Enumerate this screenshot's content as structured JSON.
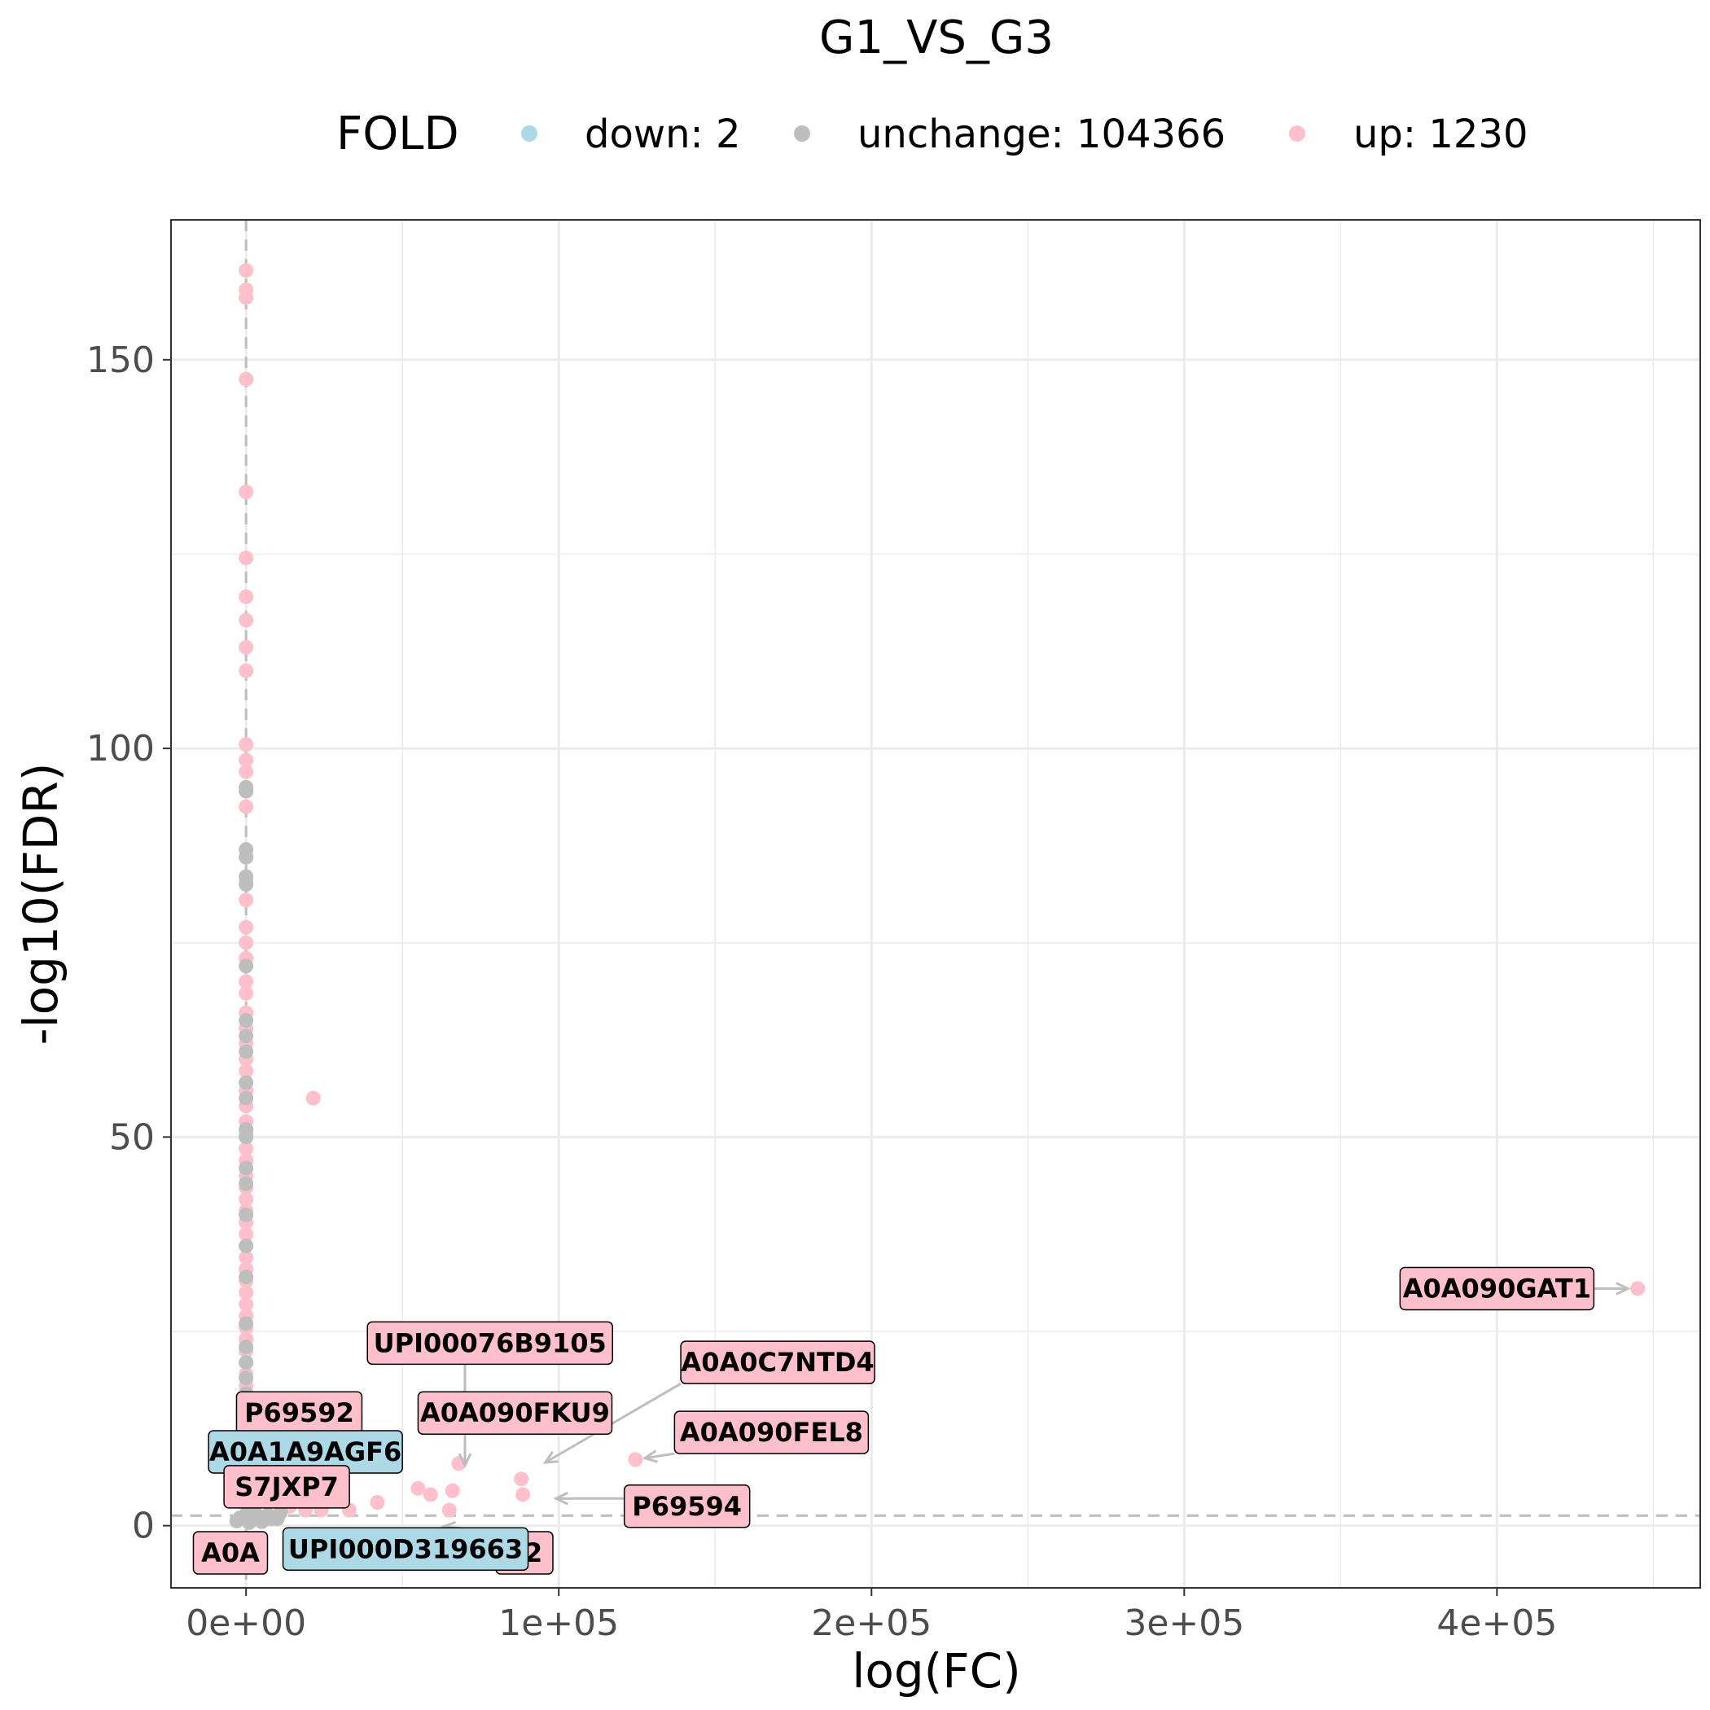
{
  "chart_data": {
    "type": "scatter",
    "title": "G1_VS_G3",
    "xlabel": "log(FC)",
    "ylabel": "-log10(FDR)",
    "xlim": [
      -24000,
      465000
    ],
    "ylim": [
      -8,
      168
    ],
    "x_ticks": [
      {
        "value": 0,
        "label": "0e+00"
      },
      {
        "value": 100000,
        "label": "1e+05"
      },
      {
        "value": 200000,
        "label": "2e+05"
      },
      {
        "value": 300000,
        "label": "3e+05"
      },
      {
        "value": 400000,
        "label": "4e+05"
      }
    ],
    "y_ticks": [
      {
        "value": 0,
        "label": "0"
      },
      {
        "value": 50,
        "label": "50"
      },
      {
        "value": 100,
        "label": "100"
      },
      {
        "value": 150,
        "label": "150"
      }
    ],
    "grid": true,
    "threshold_lines": {
      "vertical_x": 0,
      "horizontal_y": 1.3
    },
    "legend": {
      "title": "FOLD",
      "position": "top",
      "entries": [
        {
          "key": "down",
          "label": "down: 2",
          "color": "#add8e6"
        },
        {
          "key": "unchange",
          "label": "unchange: 104366",
          "color": "#bebebe"
        },
        {
          "key": "up",
          "label": "up: 1230",
          "color": "#ffc0cb"
        }
      ]
    },
    "series": [
      {
        "key": "up",
        "color": "#ffc0cb",
        "points": [
          [
            0,
            161.5
          ],
          [
            0,
            159
          ],
          [
            0,
            158
          ],
          [
            0,
            147.5
          ],
          [
            0,
            133
          ],
          [
            0,
            124.5
          ],
          [
            0,
            119.5
          ],
          [
            0,
            116.5
          ],
          [
            0,
            113
          ],
          [
            0,
            110
          ],
          [
            0,
            100.5
          ],
          [
            0,
            98.5
          ],
          [
            0,
            97
          ],
          [
            0,
            92.5
          ],
          [
            0,
            86
          ],
          [
            0,
            83
          ],
          [
            0,
            80.5
          ],
          [
            0,
            77
          ],
          [
            0,
            75
          ],
          [
            0,
            73
          ],
          [
            0,
            70
          ],
          [
            0,
            68.5
          ],
          [
            0,
            66
          ],
          [
            0,
            64
          ],
          [
            0,
            62
          ],
          [
            0,
            60
          ],
          [
            0,
            58.5
          ],
          [
            0,
            56
          ],
          [
            0,
            54
          ],
          [
            0,
            52
          ],
          [
            0,
            50.5
          ],
          [
            0,
            48.5
          ],
          [
            0,
            47
          ],
          [
            0,
            45
          ],
          [
            0,
            43.5
          ],
          [
            0,
            42
          ],
          [
            0,
            40.5
          ],
          [
            0,
            39
          ],
          [
            0,
            37.5
          ],
          [
            0,
            36
          ],
          [
            0,
            34.5
          ],
          [
            0,
            33
          ],
          [
            0,
            31.5
          ],
          [
            0,
            30
          ],
          [
            0,
            28.5
          ],
          [
            0,
            27
          ],
          [
            0,
            25.5
          ],
          [
            0,
            24
          ],
          [
            0,
            22.5
          ],
          [
            0,
            21
          ],
          [
            0,
            19.5
          ],
          [
            0,
            18
          ],
          [
            0,
            16.5
          ],
          [
            0,
            15
          ],
          [
            0,
            13.5
          ],
          [
            0,
            12
          ],
          [
            0,
            10.5
          ],
          [
            0,
            9
          ],
          [
            0,
            7.5
          ],
          [
            0,
            6
          ],
          [
            0,
            4.5
          ],
          [
            0,
            3
          ],
          [
            21500,
            55
          ],
          [
            445000,
            30.5
          ],
          [
            124500,
            8.5
          ],
          [
            68000,
            8
          ],
          [
            88000,
            6
          ],
          [
            88500,
            4
          ],
          [
            55000,
            4.8
          ],
          [
            59000,
            4
          ],
          [
            66000,
            4.5
          ],
          [
            65000,
            2
          ],
          [
            42000,
            3
          ],
          [
            33000,
            2
          ],
          [
            24000,
            2
          ],
          [
            14000,
            2.5
          ],
          [
            19000,
            2
          ],
          [
            11000,
            3
          ]
        ]
      },
      {
        "key": "unchange",
        "color": "#bebebe",
        "points": [
          [
            0,
            95
          ],
          [
            0,
            94.5
          ],
          [
            0,
            87
          ],
          [
            0,
            86
          ],
          [
            0,
            83.5
          ],
          [
            0,
            82.5
          ],
          [
            0,
            72
          ],
          [
            0,
            65
          ],
          [
            0,
            63
          ],
          [
            0,
            61
          ],
          [
            0,
            57
          ],
          [
            0,
            55
          ],
          [
            0,
            51
          ],
          [
            0,
            50
          ],
          [
            0,
            46
          ],
          [
            0,
            44
          ],
          [
            0,
            40
          ],
          [
            0,
            36
          ],
          [
            0,
            32
          ],
          [
            0,
            26
          ],
          [
            0,
            23
          ],
          [
            0,
            21
          ],
          [
            0,
            19
          ],
          [
            0,
            17
          ],
          [
            0,
            15
          ],
          [
            0,
            13
          ],
          [
            0,
            11
          ],
          [
            0,
            9
          ],
          [
            0,
            7
          ],
          [
            0,
            5
          ],
          [
            0,
            3
          ],
          [
            0,
            1.5
          ],
          [
            -2000,
            1
          ],
          [
            2000,
            0.8
          ],
          [
            4000,
            1.2
          ],
          [
            6000,
            1
          ],
          [
            8000,
            0.9
          ],
          [
            -3000,
            0.6
          ],
          [
            1000,
            0.4
          ],
          [
            3000,
            1.6
          ],
          [
            5000,
            0.5
          ],
          [
            10000,
            0.9
          ],
          [
            11000,
            1.7
          ],
          [
            7000,
            1.4
          ]
        ]
      },
      {
        "key": "down",
        "color": "#add8e6",
        "points": []
      }
    ],
    "labels": [
      {
        "text": "A0A090GAT1",
        "group": "up",
        "fill": "#ffc0cb",
        "point": [
          445000,
          30.5
        ],
        "box": [
          400000,
          30.5
        ]
      },
      {
        "text": "UPI00076B9105",
        "group": "up",
        "fill": "#ffc0cb",
        "point": [
          70000,
          11
        ],
        "box": [
          78000,
          23.5
        ]
      },
      {
        "text": "A0A0C7NTD4",
        "group": "up",
        "fill": "#ffc0cb",
        "point": [
          93000,
          7.5
        ],
        "box": [
          170000,
          21
        ]
      },
      {
        "text": "P69592",
        "group": "up",
        "fill": "#ffc0cb",
        "point": [
          40000,
          12.5
        ],
        "box": [
          17000,
          14.5
        ]
      },
      {
        "text": "A0A090FKU9",
        "group": "up",
        "fill": "#ffc0cb",
        "point": [
          70000,
          6.5
        ],
        "box": [
          86000,
          14.5
        ]
      },
      {
        "text": "A0A090FEL8",
        "group": "up",
        "fill": "#ffc0cb",
        "point": [
          124500,
          8.5
        ],
        "box": [
          168000,
          12
        ]
      },
      {
        "text": "A0A1A9AGF6",
        "group": "down",
        "fill": "#add8e6",
        "point": [
          0,
          9.5
        ],
        "box": [
          19000,
          9.5
        ]
      },
      {
        "text": "S7JXP7",
        "group": "up",
        "fill": "#ffc0cb",
        "point": [
          15000,
          5
        ],
        "box": [
          13000,
          5
        ]
      },
      {
        "text": "P69594",
        "group": "up",
        "fill": "#ffc0cb",
        "point": [
          96000,
          3.5
        ],
        "box": [
          141000,
          2.5
        ]
      },
      {
        "text": "A0A",
        "group": "up",
        "fill": "#ffc0cb",
        "point": [
          0,
          0
        ],
        "box": [
          -5000,
          -3.5
        ]
      },
      {
        "text": "72",
        "group": "up",
        "fill": "#ffc0cb",
        "point": [
          60000,
          0
        ],
        "box": [
          89000,
          -3.5
        ]
      },
      {
        "text": "UPI000D319663",
        "group": "down",
        "fill": "#add8e6",
        "point": [
          20000,
          0
        ],
        "box": [
          51000,
          -3
        ]
      }
    ]
  }
}
